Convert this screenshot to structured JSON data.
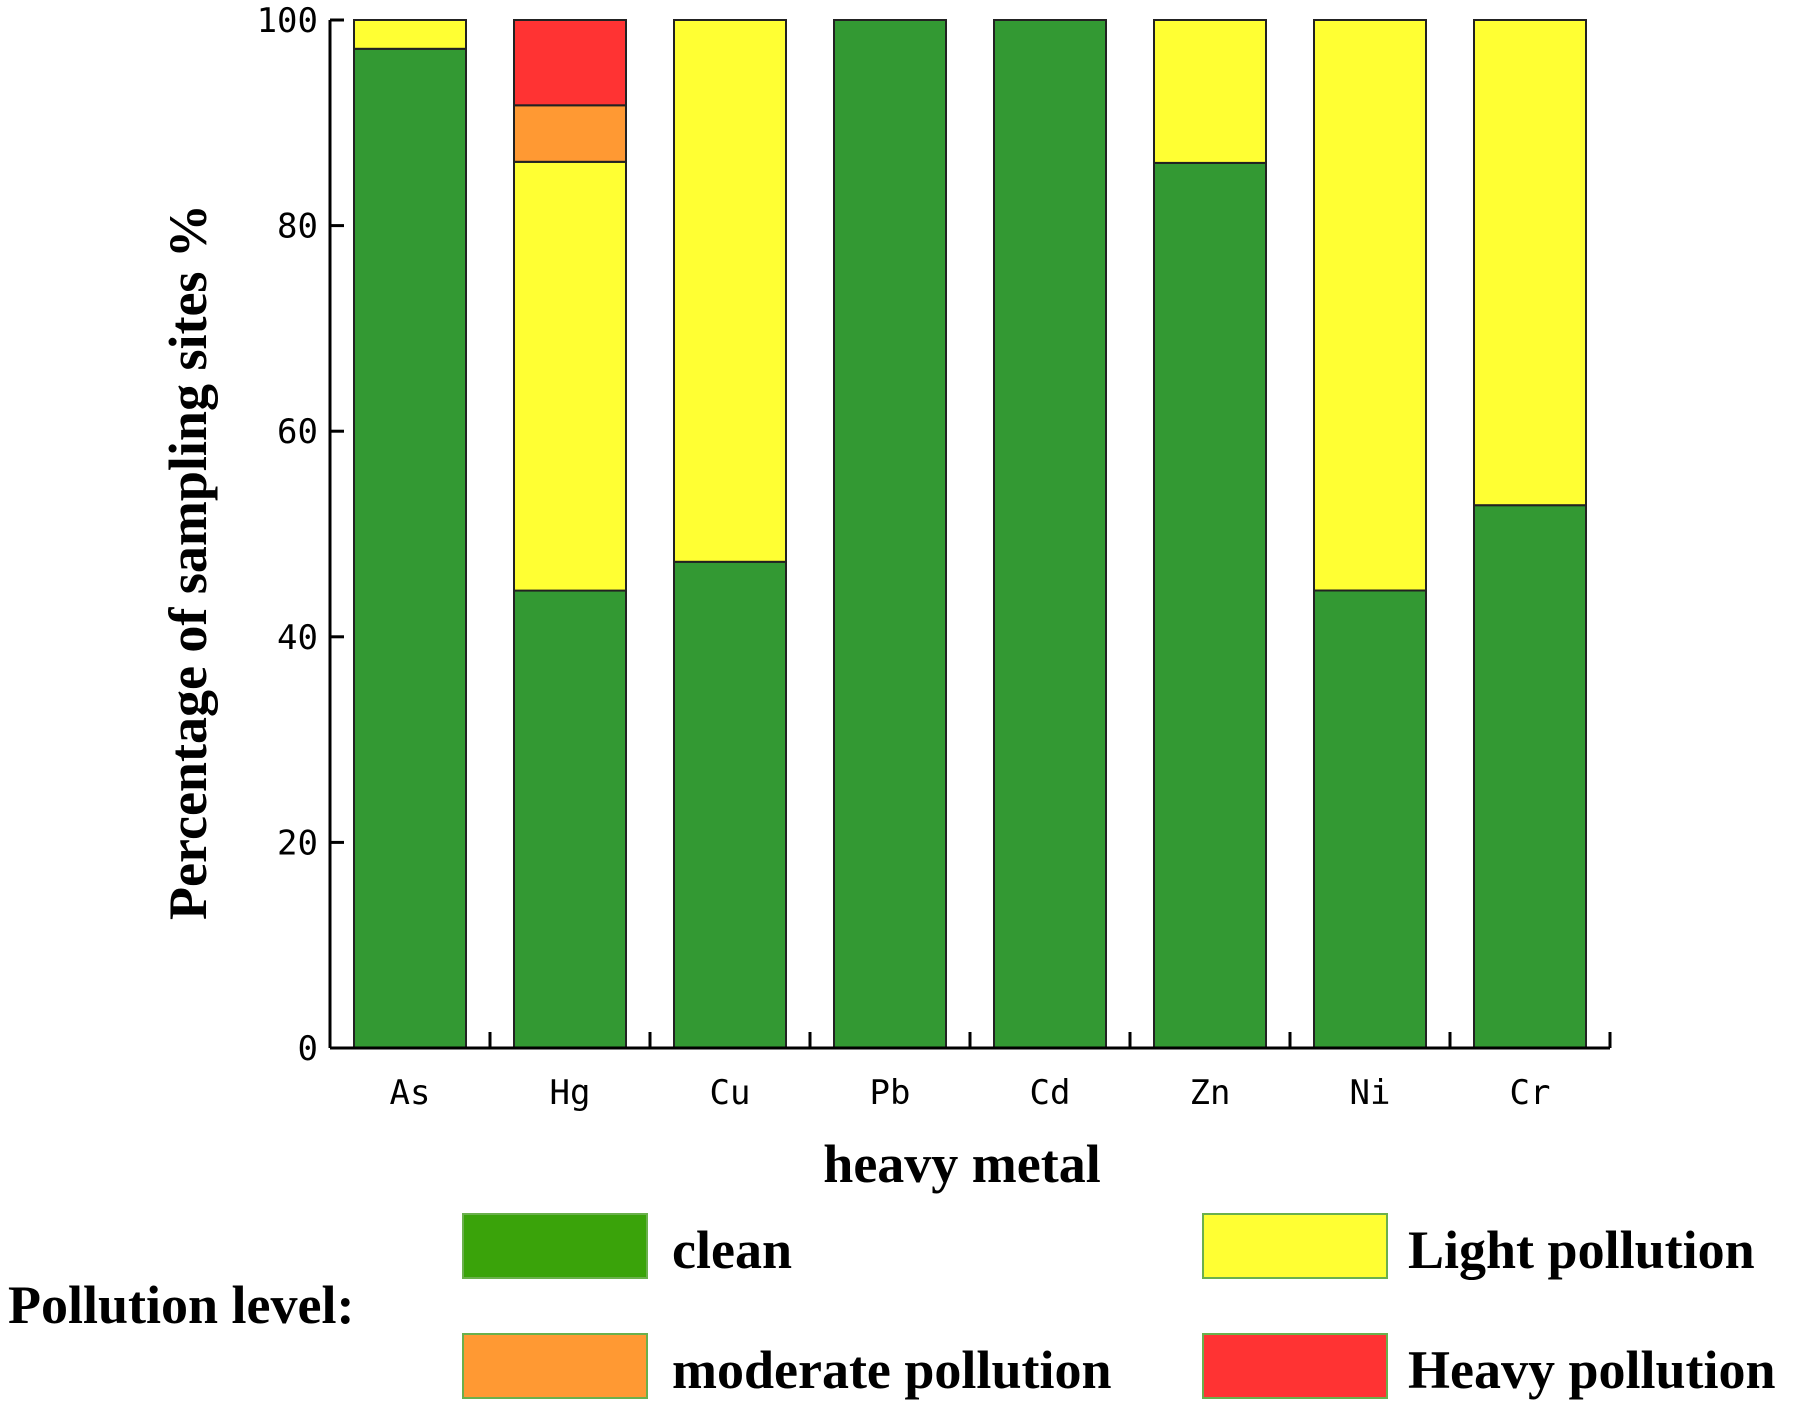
{
  "chart_data": {
    "type": "bar",
    "stacked": true,
    "categories": [
      "As",
      "Hg",
      "Cu",
      "Pb",
      "Cd",
      "Zn",
      "Ni",
      "Cr"
    ],
    "series": [
      {
        "name": "clean",
        "color": "#339933",
        "values": [
          97.2,
          44.5,
          47.3,
          100,
          100,
          86.1,
          44.5,
          52.8
        ]
      },
      {
        "name": "Light pollution",
        "color": "#ffff33",
        "values": [
          2.8,
          41.7,
          52.7,
          0,
          0,
          13.9,
          55.5,
          47.2
        ]
      },
      {
        "name": "moderate pollution",
        "color": "#ff9933",
        "values": [
          0,
          5.5,
          0,
          0,
          0,
          0,
          0,
          0
        ]
      },
      {
        "name": "Heavy pollution",
        "color": "#ff3333",
        "values": [
          0,
          8.3,
          0,
          0,
          0,
          0,
          0,
          0
        ]
      }
    ],
    "stack_order": [
      "clean",
      "Light pollution",
      "moderate pollution",
      "Heavy pollution"
    ],
    "xlabel": "heavy metal",
    "ylabel": "Percentage of sampling sites %",
    "ylim": [
      0,
      100
    ],
    "yticks": [
      0,
      20,
      40,
      60,
      80,
      100
    ],
    "grid": false,
    "legend": {
      "title": "Pollution level:",
      "placement": "bottom",
      "entries": [
        {
          "label": "clean",
          "color": "#3aa30a"
        },
        {
          "label": "Light pollution",
          "color": "#ffff33"
        },
        {
          "label": "moderate pollution",
          "color": "#ff9933"
        },
        {
          "label": "Heavy pollution",
          "color": "#ff3333"
        }
      ]
    }
  }
}
